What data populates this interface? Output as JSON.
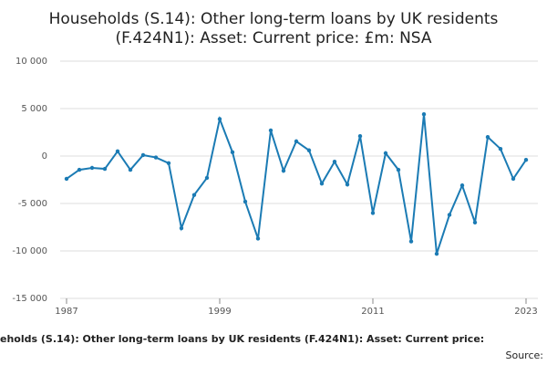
{
  "chart_data": {
    "type": "line",
    "title": [
      "Households (S.14): Other long-term loans by UK residents",
      "(F.424N1): Asset: Current price: £m: NSA"
    ],
    "footer": "eholds (S.14): Other long-term loans by UK residents (F.424N1): Asset: Current price:",
    "source": "Source:",
    "x": [
      1987,
      1988,
      1989,
      1990,
      1991,
      1992,
      1993,
      1994,
      1995,
      1996,
      1997,
      1998,
      1999,
      2000,
      2001,
      2002,
      2003,
      2004,
      2005,
      2006,
      2007,
      2008,
      2009,
      2010,
      2011,
      2012,
      2013,
      2014,
      2015,
      2016,
      2017,
      2018,
      2019,
      2020,
      2021,
      2022,
      2023
    ],
    "series": [
      {
        "color": "#1b7bb4",
        "values": [
          -2400,
          -1450,
          -1250,
          -1350,
          500,
          -1450,
          100,
          -150,
          -750,
          -7600,
          -4100,
          -2300,
          3900,
          400,
          -4800,
          -8700,
          2700,
          -1550,
          1550,
          600,
          -2900,
          -600,
          -3000,
          2100,
          -6000,
          300,
          -1450,
          -9000,
          4400,
          -10300,
          -6200,
          -3100,
          -7000,
          2000,
          750,
          -2400,
          -400
        ]
      }
    ],
    "xlim": [
      1987,
      2023
    ],
    "xticks": [
      1987,
      1999,
      2011,
      2023
    ],
    "ylim": [
      -15000,
      10000
    ],
    "yticks": [
      {
        "value": -15000,
        "label": "-15 000"
      },
      {
        "value": -10000,
        "label": "-10 000"
      },
      {
        "value": -5000,
        "label": "-5 000"
      },
      0,
      {
        "value": 5000,
        "label": "5 000"
      },
      {
        "value": 10000,
        "label": "10 000"
      }
    ],
    "grid": true
  }
}
